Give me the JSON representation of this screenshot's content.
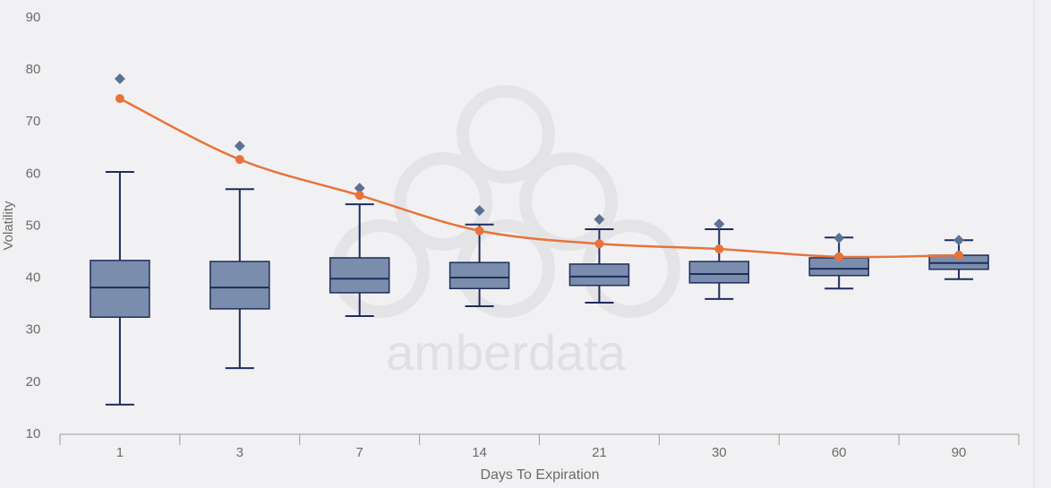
{
  "chart_data": {
    "type": "box",
    "watermark": "amberdata",
    "x_label": "Days To Expiration",
    "y_label": "Volatility",
    "categories": [
      "1",
      "3",
      "7",
      "14",
      "21",
      "30",
      "60",
      "90"
    ],
    "low": [
      15.7,
      22.7,
      32.7,
      34.6,
      35.3,
      36.0,
      38.0,
      39.8
    ],
    "q1": [
      32.5,
      34.1,
      37.2,
      38.0,
      38.6,
      39.1,
      40.5,
      41.7
    ],
    "median": [
      38.2,
      38.2,
      39.9,
      40.1,
      40.3,
      40.8,
      41.8,
      42.9
    ],
    "q3": [
      43.4,
      43.2,
      43.9,
      43.0,
      42.7,
      43.2,
      43.9,
      44.4
    ],
    "high": [
      60.4,
      57.1,
      54.2,
      50.3,
      49.4,
      49.4,
      47.8,
      47.3
    ],
    "outliers": [
      78.3,
      65.4,
      57.3,
      53.0,
      51.3,
      50.4,
      47.7,
      47.3
    ],
    "line_values": [
      74.5,
      62.8,
      55.9,
      49.1,
      46.6,
      45.6,
      44.1,
      44.4
    ],
    "box_color": "#7b8dac",
    "box_edge_color": "#1f2c5e",
    "outlier_color": "#5d7196",
    "line_color": "#e8733a",
    "ylim": [
      10,
      90
    ],
    "yticks": [
      10,
      20,
      30,
      40,
      50,
      60,
      70,
      80,
      90
    ]
  }
}
